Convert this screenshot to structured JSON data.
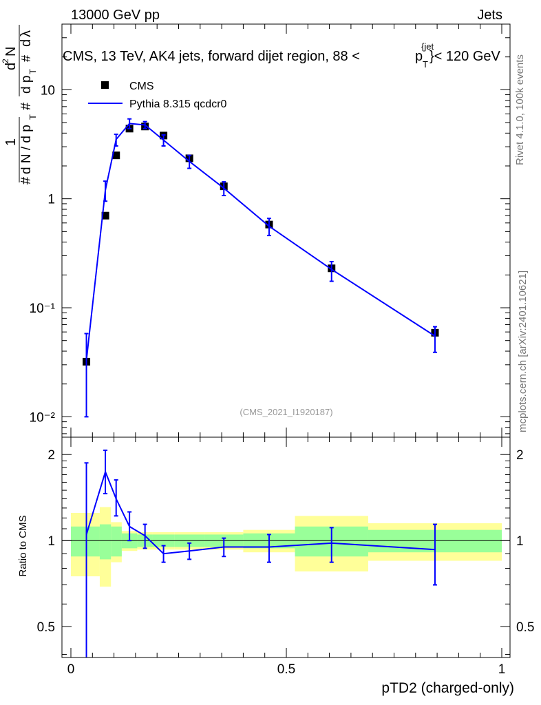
{
  "header": {
    "energy_label": "13000 GeV pp",
    "category_label": "Jets"
  },
  "side_text": {
    "rivet": "Rivet 4.1.0,  100k events",
    "mcplots": "mcplots.cern.ch [arXiv:2401.10621]"
  },
  "main_plot": {
    "title_prefix": "CMS, 13 TeV, AK4 jets, forward dijet region, 88 <",
    "title_p": "p",
    "title_sub": "T",
    "title_sup": "{jet",
    "title_suffix": "}< 120 GeV",
    "analysis_id": "(CMS_2021_I1920187)",
    "ylabel": "#  1/(dN / d pT #)  d²N/(d pT # dλ)",
    "ylabel_parts": [
      "#",
      "1",
      "d N / d p",
      "T",
      "#",
      "d",
      "2",
      "N",
      "d p",
      "T",
      "#",
      "d",
      "λ"
    ]
  },
  "ratio_plot": {
    "ylabel": "Ratio to CMS"
  },
  "colors": {
    "data": "#000000",
    "mc": "#0000ff",
    "band_inner": "#99ff99",
    "band_outer": "#ffff99"
  },
  "chart_data": {
    "type": "line",
    "xlabel": "pTD2 (charged-only)",
    "xlim": [
      0,
      1
    ],
    "x_ticks": [
      "0",
      "0.5",
      "1"
    ],
    "main_ylim": [
      0.0065,
      40
    ],
    "main_y_ticks": [
      "10⁻²",
      "10⁻¹",
      "1",
      "10"
    ],
    "ratio_ylim": [
      0.39,
      2.3
    ],
    "ratio_y_ticks": [
      "0.5",
      "1",
      "2"
    ],
    "legend": [
      "CMS",
      "Pythia 8.315 qcdcr0"
    ],
    "legend_position": "top-left",
    "data_series": {
      "name": "CMS",
      "x": [
        0.036,
        0.08,
        0.105,
        0.136,
        0.172,
        0.215,
        0.275,
        0.355,
        0.46,
        0.605,
        0.845
      ],
      "y": [
        0.032,
        0.7,
        2.5,
        4.4,
        4.6,
        3.8,
        2.35,
        1.3,
        0.58,
        0.23,
        0.059
      ]
    },
    "mc_series": {
      "name": "Pythia 8.315 qcdcr0",
      "x": [
        0.036,
        0.08,
        0.105,
        0.136,
        0.172,
        0.215,
        0.275,
        0.355,
        0.46,
        0.605,
        0.845
      ],
      "y": [
        0.033,
        1.2,
        3.5,
        4.9,
        4.75,
        3.45,
        2.2,
        1.25,
        0.56,
        0.225,
        0.055
      ],
      "yerr_low": [
        0.023,
        0.25,
        0.45,
        0.5,
        0.35,
        0.4,
        0.3,
        0.18,
        0.1,
        0.05,
        0.016
      ],
      "yerr_high": [
        0.025,
        0.25,
        0.4,
        0.5,
        0.35,
        0.4,
        0.3,
        0.18,
        0.1,
        0.04,
        0.012
      ]
    },
    "ratio_series": {
      "x": [
        0.036,
        0.08,
        0.105,
        0.136,
        0.172,
        0.215,
        0.275,
        0.355,
        0.46,
        0.605,
        0.845
      ],
      "y": [
        1.05,
        1.74,
        1.4,
        1.12,
        1.04,
        0.9,
        0.92,
        0.95,
        0.95,
        0.98,
        0.93
      ],
      "yerr_low": [
        0.75,
        0.28,
        0.18,
        0.12,
        0.1,
        0.06,
        0.06,
        0.07,
        0.11,
        0.14,
        0.23
      ],
      "yerr_high": [
        0.82,
        0.33,
        0.23,
        0.14,
        0.1,
        0.06,
        0.06,
        0.07,
        0.1,
        0.13,
        0.21
      ]
    },
    "uncertainty_bands": {
      "edges": [
        0,
        0.067,
        0.093,
        0.118,
        0.154,
        0.19,
        0.24,
        0.31,
        0.4,
        0.52,
        0.69,
        1.0
      ],
      "inner_low": [
        0.88,
        0.86,
        0.88,
        0.94,
        0.95,
        0.95,
        0.95,
        0.95,
        0.94,
        0.88,
        0.91
      ],
      "inner_high": [
        1.12,
        1.14,
        1.12,
        1.06,
        1.05,
        1.05,
        1.05,
        1.05,
        1.06,
        1.12,
        1.09
      ],
      "outer_low": [
        0.75,
        0.69,
        0.84,
        0.92,
        0.93,
        0.93,
        0.93,
        0.93,
        0.91,
        0.78,
        0.85
      ],
      "outer_high": [
        1.25,
        1.31,
        1.16,
        1.08,
        1.07,
        1.07,
        1.07,
        1.07,
        1.09,
        1.22,
        1.15
      ]
    }
  }
}
